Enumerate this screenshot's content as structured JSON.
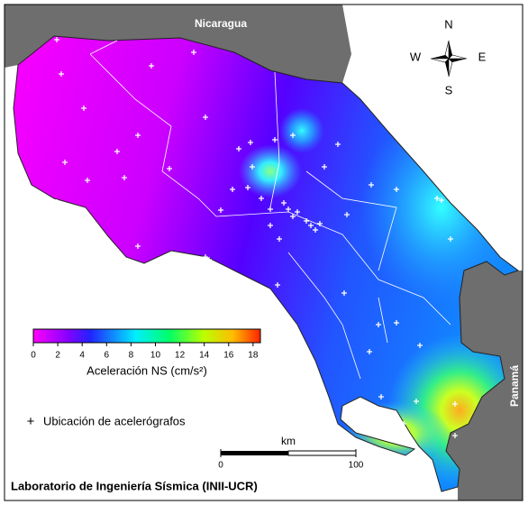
{
  "map": {
    "countries": {
      "north": "Nicaragua",
      "south": "Panamá"
    },
    "compass": {
      "n": "N",
      "w": "W",
      "e": "E",
      "s": "S"
    },
    "colorbar": {
      "label": "Aceleración NS (cm/s²)",
      "lim": [
        0,
        18.6
      ],
      "ticks": [
        0,
        2,
        4,
        6,
        8,
        10,
        12,
        14,
        16,
        18
      ]
    },
    "legend": {
      "marker": "+",
      "label": "Ubicación de acelerógrafos"
    },
    "scale_bar": {
      "unit": "km",
      "lim": [
        0,
        100
      ],
      "ticks": [
        0,
        100
      ]
    },
    "footer": "Laboratorio de Ingeniería Sísmica (INII-UCR)"
  }
}
